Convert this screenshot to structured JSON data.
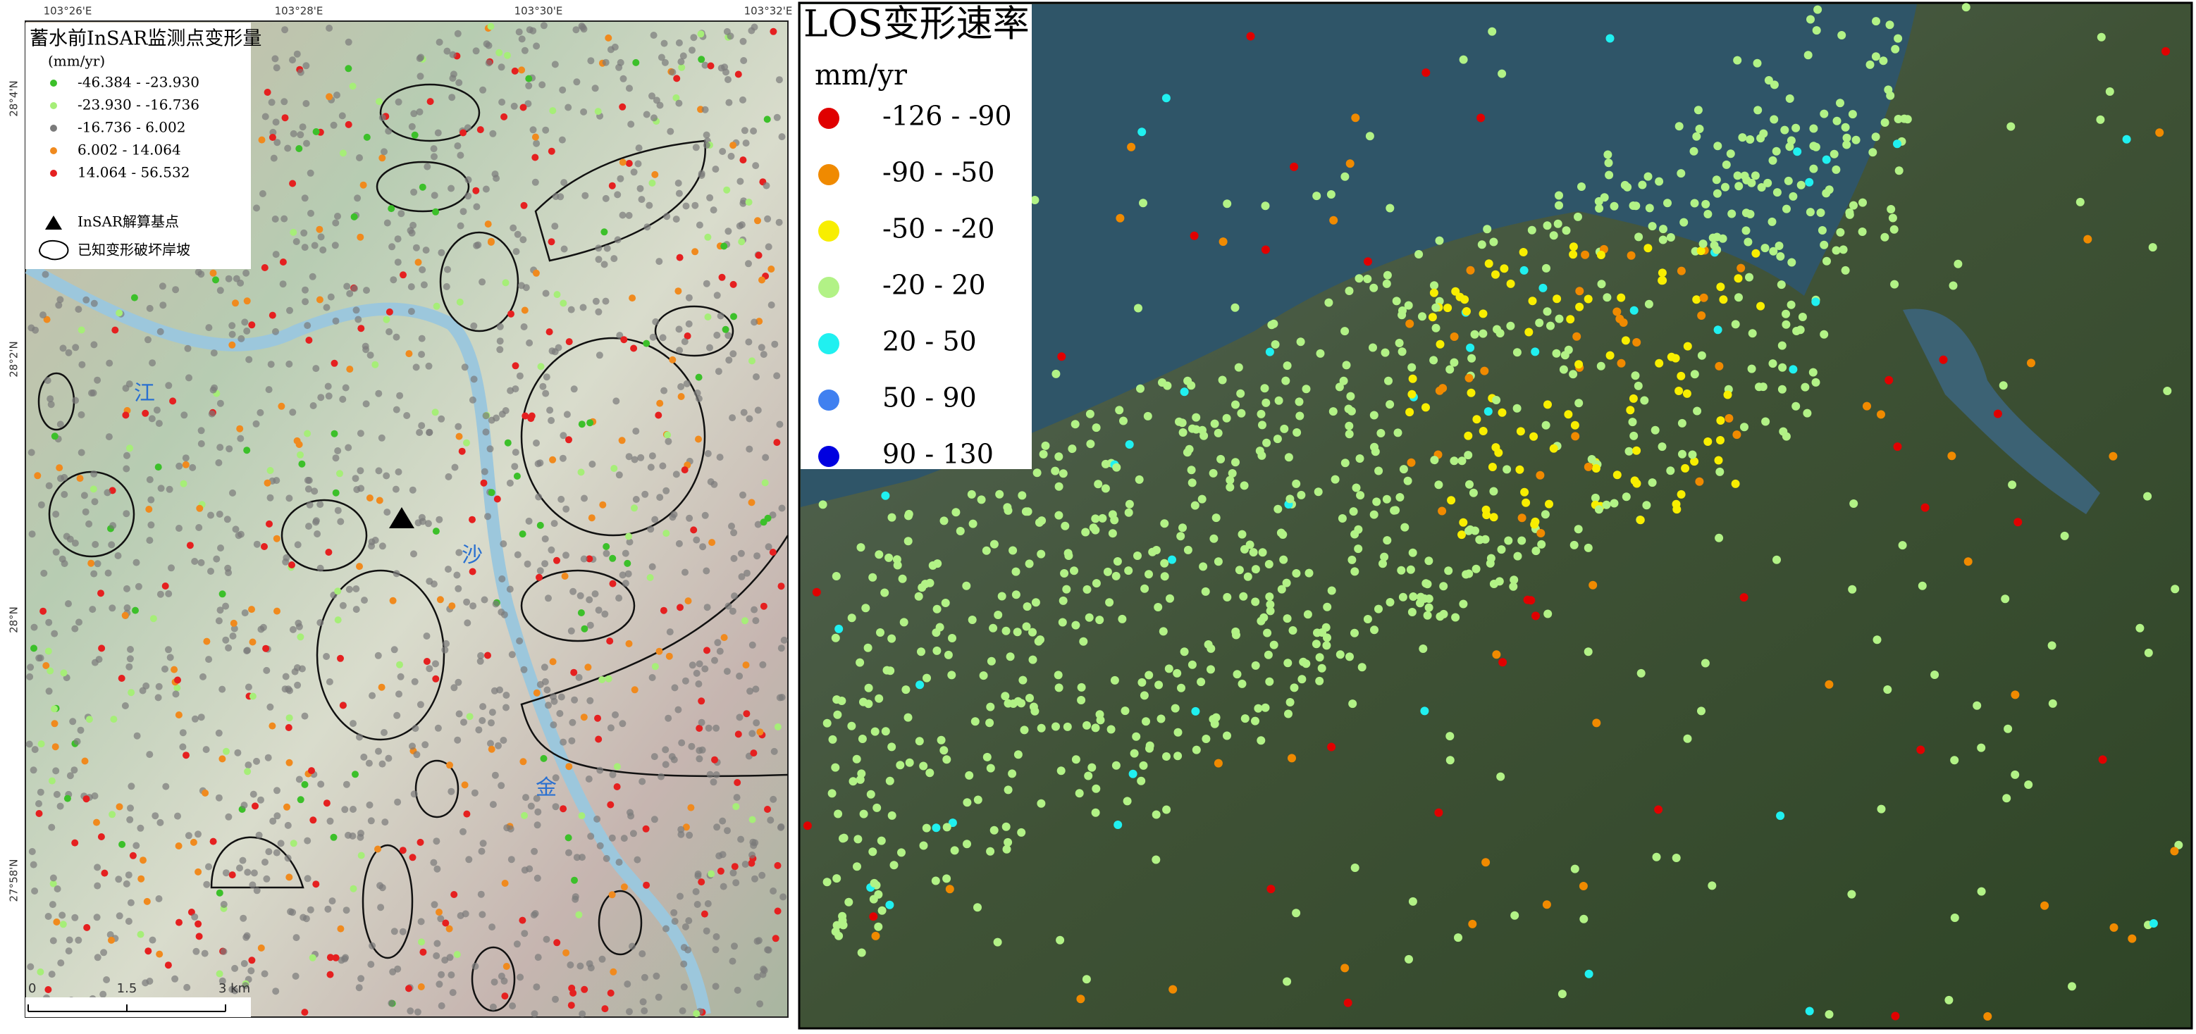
{
  "left_map": {
    "top_coords": [
      "103°26'E",
      "103°28'E",
      "103°30'E",
      "103°32'E"
    ],
    "left_coords": [
      "28°4'N",
      "28°2'N",
      "28°N",
      "27°58'N"
    ],
    "legend": {
      "title": "蓄水前InSAR监测点变形量",
      "unit": "(mm/yr)",
      "items": [
        {
          "label": "-46.384 - -23.930",
          "color": "#3cc02a"
        },
        {
          "label": "-23.930 - -16.736",
          "color": "#a6ee78"
        },
        {
          "label": "-16.736 - 6.002",
          "color": "#7a7a7a"
        },
        {
          "label": "6.002 - 14.064",
          "color": "#f08a1e"
        },
        {
          "label": "14.064 - 56.532",
          "color": "#e52020"
        }
      ],
      "base_point": "InSAR解算基点",
      "known_slope": "已知变形破坏岸坡"
    },
    "river_labels": [
      "江",
      "沙",
      "金"
    ],
    "scale_labels": [
      "0",
      "1.5",
      "3 km"
    ]
  },
  "right_map": {
    "legend": {
      "title": "LOS变形速率",
      "unit": "mm/yr",
      "items": [
        {
          "label": "-126 - -90",
          "color": "#e00000"
        },
        {
          "label": "-90 - -50",
          "color": "#f08a00"
        },
        {
          "label": "-50 - -20",
          "color": "#f8ee00"
        },
        {
          "label": "-20 - 20",
          "color": "#b2f286"
        },
        {
          "label": "20 - 50",
          "color": "#20f0f0"
        },
        {
          "label": "50 - 90",
          "color": "#4080f0"
        },
        {
          "label": "90 - 130",
          "color": "#0000e0"
        }
      ]
    }
  }
}
